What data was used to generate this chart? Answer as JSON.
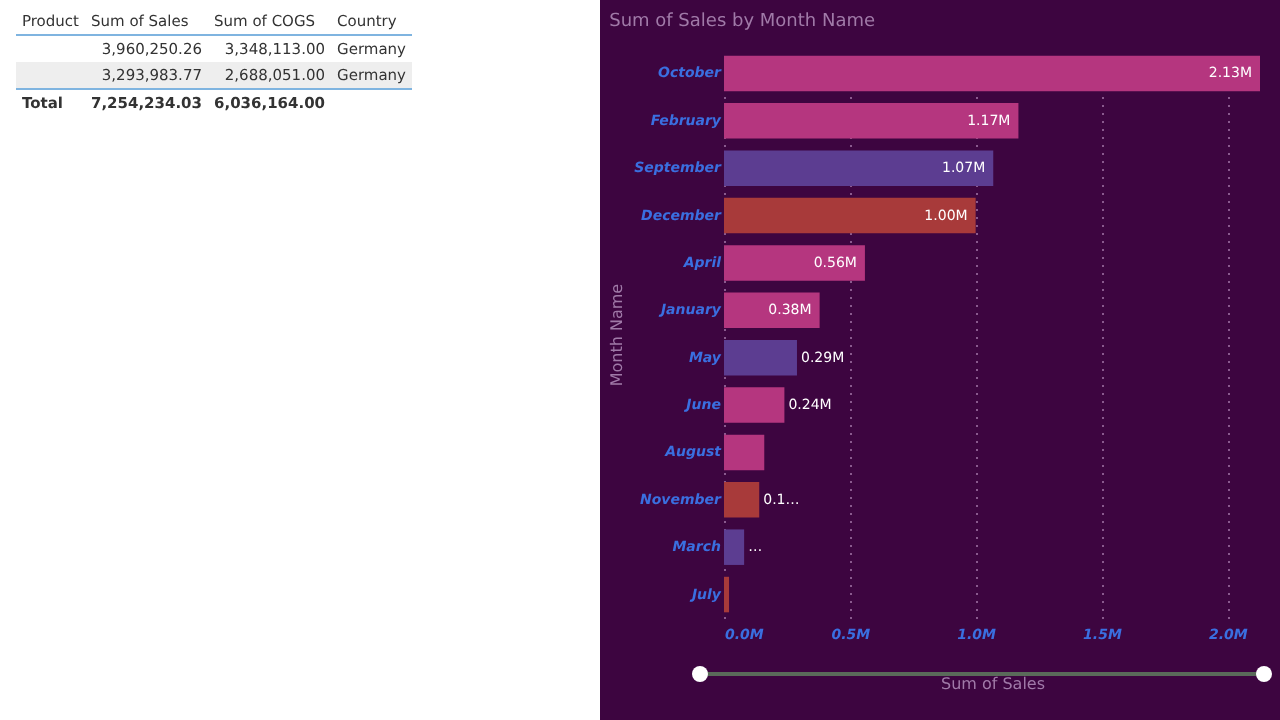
{
  "chart_data": [
    {
      "type": "other",
      "annotations": [
        "Product",
        "Sum of Sales",
        "Sum of COGS",
        "Country",
        "3,960,250.26",
        "3,348,113.00",
        "Germany",
        "3,293,983.77",
        "2,688,051.00",
        "Germany",
        "Total",
        "7,254,234.03",
        "6,036,164.00"
      ]
    },
    {
      "type": "bar",
      "orientation": "horizontal",
      "title": "Sum of Sales by Month Name",
      "xlabel": "Sum of Sales",
      "ylabel": "Month Name",
      "categories": [
        "October",
        "February",
        "September",
        "December",
        "April",
        "January",
        "May",
        "June",
        "August",
        "November",
        "March",
        "July"
      ],
      "values": [
        2.13,
        1.17,
        1.07,
        1.0,
        0.56,
        0.38,
        0.29,
        0.24,
        0.16,
        0.14,
        0.08,
        0.02
      ],
      "colors": [
        "#b5367f",
        "#b5367f",
        "#5c3d91",
        "#a83a3a",
        "#b5367f",
        "#b5367f",
        "#5c3d91",
        "#b5367f",
        "#b5367f",
        "#a83a3a",
        "#5c3d91",
        "#a83a3a"
      ],
      "value_labels": [
        "2.13M",
        "1.17M",
        "1.07M",
        "1.00M",
        "0.56M",
        "0.38M",
        "0.29M",
        "0.24M",
        null,
        "0.1…",
        "…",
        null
      ],
      "xlim": [
        0,
        2.13
      ],
      "xticks": [
        {
          "value": 0,
          "label": "0.0M"
        },
        {
          "value": 0.5,
          "label": "0.5M"
        },
        {
          "value": 1,
          "label": "1.0M"
        },
        {
          "value": 1.5,
          "label": "1.5M"
        },
        {
          "value": 2,
          "label": "2.0M"
        }
      ],
      "grid": "x"
    }
  ]
}
